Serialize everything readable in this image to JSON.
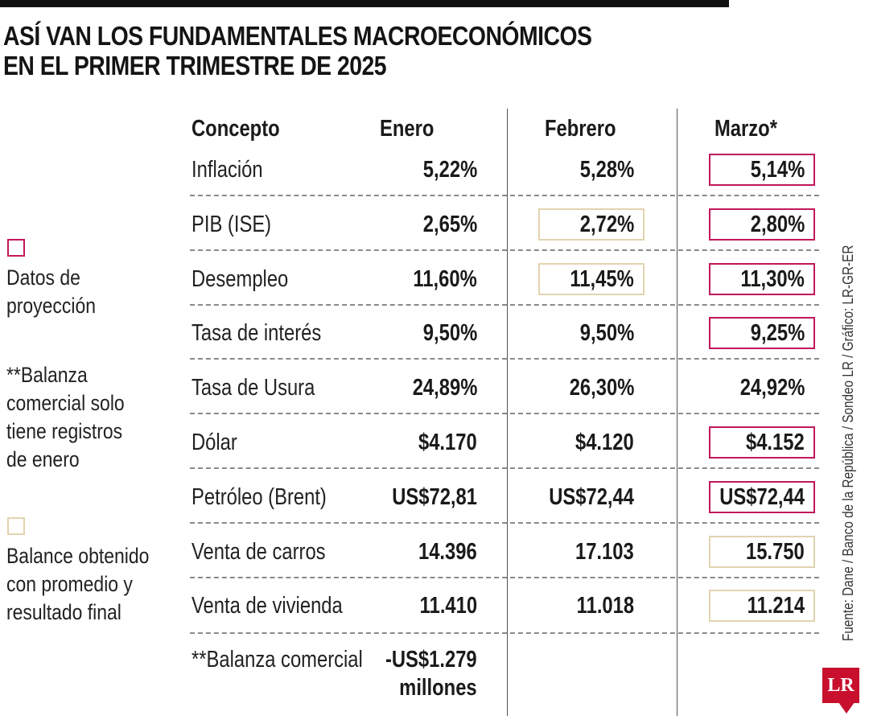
{
  "title_line1": "ASÍ VAN LOS FUNDAMENTALES MACROECONÓMICOS",
  "title_line2": "EN EL PRIMER TRIMESTRE DE 2025",
  "headers": {
    "concepto": "Concepto",
    "enero": "Enero",
    "febrero": "Febrero",
    "marzo": "Marzo*"
  },
  "rows": [
    {
      "concept": "Inflación",
      "enero": "5,22%",
      "febrero": "5,28%",
      "marzo": "5,14%",
      "feb_box": "",
      "mar_box": "projection"
    },
    {
      "concept": "PIB (ISE)",
      "enero": "2,65%",
      "febrero": "2,72%",
      "marzo": "2,80%",
      "feb_box": "balance",
      "mar_box": "projection"
    },
    {
      "concept": "Desempleo",
      "enero": "11,60%",
      "febrero": "11,45%",
      "marzo": "11,30%",
      "feb_box": "balance",
      "mar_box": "projection"
    },
    {
      "concept": "Tasa de interés",
      "enero": "9,50%",
      "febrero": "9,50%",
      "marzo": "9,25%",
      "feb_box": "",
      "mar_box": "projection"
    },
    {
      "concept": "Tasa de Usura",
      "enero": "24,89%",
      "febrero": "26,30%",
      "marzo": "24,92%",
      "feb_box": "",
      "mar_box": ""
    },
    {
      "concept": "Dólar",
      "enero": "$4.170",
      "febrero": "$4.120",
      "marzo": "$4.152",
      "feb_box": "",
      "mar_box": "projection"
    },
    {
      "concept": "Petróleo (Brent)",
      "enero": "US$72,81",
      "febrero": "US$72,44",
      "marzo": "US$72,44",
      "feb_box": "",
      "mar_box": "projection"
    },
    {
      "concept": "Venta de carros",
      "enero": "14.396",
      "febrero": "17.103",
      "marzo": "15.750",
      "feb_box": "",
      "mar_box": "balance"
    },
    {
      "concept": "Venta de vivienda",
      "enero": "11.410",
      "febrero": "11.018",
      "marzo": "11.214",
      "feb_box": "",
      "mar_box": "balance"
    }
  ],
  "balanza": {
    "concept": "**Balanza comercial",
    "enero_line1": "-US$1.279",
    "enero_line2": "millones"
  },
  "legend": {
    "projection": [
      "Datos de",
      "proyección"
    ],
    "note": [
      "**Balanza",
      "comercial solo",
      "tiene registros",
      "de enero"
    ],
    "balance": [
      "Balance obtenido",
      "con promedio y",
      "resultado final"
    ]
  },
  "colors": {
    "projection": "#c2185b",
    "balance": "#e2d3b0"
  },
  "source": "Fuente: Dane / Banco de la República / Sondeo LR / Gráfico: LR-GR-ER",
  "logo": "LR"
}
